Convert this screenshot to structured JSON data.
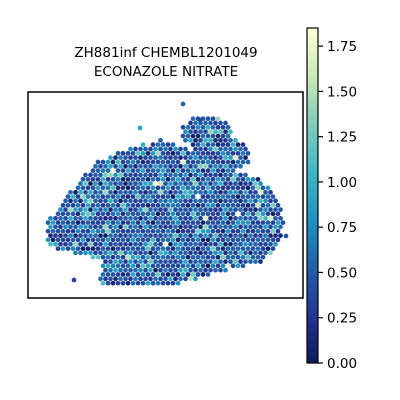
{
  "chart_data": {
    "type": "scatter",
    "title_lines": [
      "ZH881inf CHEMBL1201049",
      "ECONAZOLE NITRATE"
    ],
    "plot": "spatial hexagonal-spot expression map",
    "grid": false,
    "colorbar": {
      "position": "right",
      "colormap": "YlGnBu_r",
      "range": [
        0.0,
        1.85
      ],
      "ticks": [
        0.0,
        0.25,
        0.5,
        0.75,
        1.0,
        1.25,
        1.5,
        1.75
      ],
      "tick_labels": [
        "0.00",
        "0.25",
        "0.50",
        "0.75",
        "1.00",
        "1.25",
        "1.50",
        "1.75"
      ]
    },
    "colors": {
      "low": "#081d58",
      "mid": "#1d91c0",
      "high": "#ffffd9"
    }
  }
}
